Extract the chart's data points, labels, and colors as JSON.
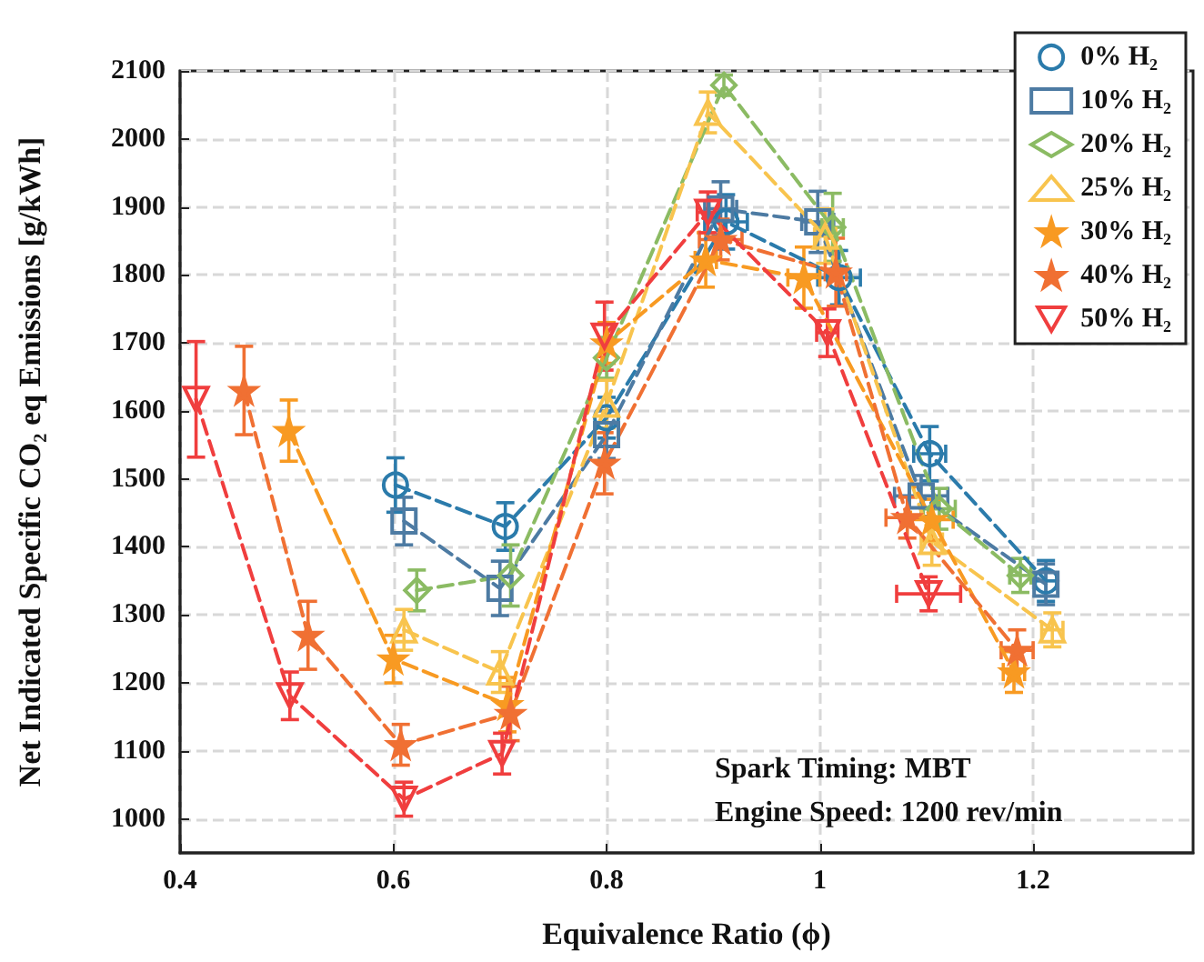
{
  "chart_data": {
    "type": "line",
    "xlabel": "Equivalence Ratio (ϕ)",
    "ylabel": "Net Indicated Specific CO₂ eq Emissions [g/kWh]",
    "xlim": [
      0.4,
      1.35
    ],
    "xticks": [
      0.4,
      0.6,
      0.8,
      1,
      1.2
    ],
    "ylim": [
      950,
      2100
    ],
    "yticks": [
      1000,
      1100,
      1200,
      1300,
      1400,
      1500,
      1600,
      1700,
      1800,
      1900,
      2000,
      2100
    ],
    "grid": true,
    "legend": "top right",
    "line_style": "dashed",
    "annotations": [
      "Spark Timing: MBT",
      "Engine Speed: 1200 rev/min"
    ],
    "series": [
      {
        "name": "0% H₂",
        "color": "#2b7bab",
        "marker": "circle",
        "x": [
          0.602,
          0.705,
          0.8,
          0.912,
          1.018,
          1.103,
          1.212
        ],
        "values": [
          1491,
          1430,
          1590,
          1878,
          1796,
          1537,
          1350
        ],
        "errors": [
          40,
          35,
          30,
          40,
          40,
          40,
          30
        ],
        "xerrors": [
          null,
          null,
          null,
          0.02,
          0.02,
          0.015,
          0.01
        ]
      },
      {
        "name": "10% H₂",
        "color": "#4d7ba3",
        "marker": "square",
        "x": [
          0.61,
          0.7,
          0.8,
          0.907,
          0.998,
          1.095,
          1.212
        ],
        "values": [
          1438,
          1339,
          1565,
          1897,
          1878,
          1475,
          1345
        ],
        "errors": [
          35,
          40,
          35,
          40,
          45,
          30,
          30
        ],
        "xerrors": [
          null,
          null,
          null,
          0.015,
          0.015,
          0.025,
          null
        ]
      },
      {
        "name": "20% H₂",
        "color": "#8bbb63",
        "marker": "diamond",
        "x": [
          0.622,
          0.71,
          0.8,
          0.91,
          1.012,
          1.112,
          1.188
        ],
        "values": [
          1336,
          1358,
          1678,
          2079,
          1870,
          1456,
          1358
        ],
        "errors": [
          30,
          45,
          30,
          15,
          50,
          30,
          25
        ],
        "xerrors": [
          null,
          null,
          null,
          null,
          0.01,
          0.015,
          0.01
        ]
      },
      {
        "name": "25% H₂",
        "color": "#f8c44e",
        "marker": "triangle",
        "x": [
          0.61,
          0.7,
          0.8,
          0.895,
          1.005,
          1.105,
          1.218
        ],
        "values": [
          1278,
          1216,
          1610,
          2039,
          1857,
          1408,
          1278
        ],
        "errors": [
          30,
          30,
          35,
          30,
          40,
          35,
          25
        ],
        "xerrors": [
          null,
          null,
          null,
          null,
          0.01,
          0.01,
          0.01
        ]
      },
      {
        "name": "30% H₂",
        "color": "#f89a22",
        "marker": "star",
        "x": [
          0.502,
          0.6,
          0.707,
          0.8,
          0.893,
          0.985,
          1.105,
          1.182
        ],
        "values": [
          1571,
          1235,
          1168,
          1700,
          1822,
          1796,
          1440,
          1216
        ],
        "errors": [
          45,
          35,
          40,
          30,
          40,
          45,
          30,
          30
        ],
        "xerrors": [
          null,
          null,
          null,
          null,
          0.01,
          0.015,
          0.02,
          0.01
        ]
      },
      {
        "name": "40% H₂",
        "color": "#f07033",
        "marker": "star",
        "x": [
          0.46,
          0.52,
          0.607,
          0.71,
          0.798,
          0.907,
          1.015,
          1.082,
          1.185
        ],
        "values": [
          1630,
          1270,
          1109,
          1155,
          1523,
          1852,
          1804,
          1443,
          1248
        ],
        "errors": [
          65,
          50,
          30,
          40,
          45,
          30,
          50,
          30,
          30
        ],
        "xerrors": [
          null,
          null,
          null,
          null,
          null,
          0.02,
          0.01,
          0.02,
          0.015
        ]
      },
      {
        "name": "50% H₂",
        "color": "#f03e3e",
        "marker": "triangle-down",
        "x": [
          0.415,
          0.503,
          0.61,
          0.702,
          0.798,
          0.895,
          1.007,
          1.102
        ],
        "values": [
          1617,
          1181,
          1029,
          1096,
          1710,
          1892,
          1715,
          1331
        ],
        "errors": [
          85,
          35,
          25,
          30,
          50,
          30,
          35,
          25
        ],
        "xerrors": [
          null,
          null,
          null,
          null,
          null,
          0.01,
          0.01,
          0.03
        ]
      }
    ]
  }
}
